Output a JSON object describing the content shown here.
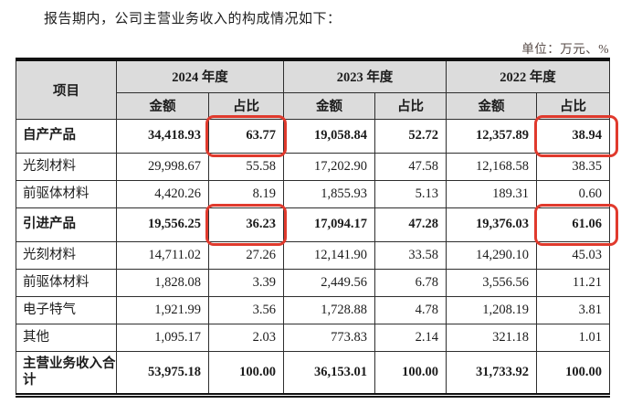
{
  "page": {
    "intro": "报告期内，公司主营业务收入的构成情况如下：",
    "unit_note": "单位：万元、%"
  },
  "colors": {
    "highlight_red": "#e03a2d",
    "header_bg": "#dcdcdc"
  },
  "table": {
    "item_header": "项目",
    "year_groups": [
      {
        "year": "2024 年度",
        "amount_label": "金额",
        "ratio_label": "占比"
      },
      {
        "year": "2023 年度",
        "amount_label": "金额",
        "ratio_label": "占比"
      },
      {
        "year": "2022 年度",
        "amount_label": "金额",
        "ratio_label": "占比"
      }
    ],
    "rows": [
      {
        "item": "自产产品",
        "style": "group",
        "values": [
          "34,418.93",
          "63.77",
          "19,058.84",
          "52.72",
          "12,357.89",
          "38.94"
        ],
        "highlights": [
          1,
          5
        ]
      },
      {
        "item": "光刻材料",
        "style": "sub",
        "values": [
          "29,998.67",
          "55.58",
          "17,202.90",
          "47.58",
          "12,168.58",
          "38.35"
        ],
        "highlights": []
      },
      {
        "item": "前驱体材料",
        "style": "sub",
        "values": [
          "4,420.26",
          "8.19",
          "1,855.93",
          "5.13",
          "189.31",
          "0.60"
        ],
        "highlights": []
      },
      {
        "item": "引进产品",
        "style": "group",
        "values": [
          "19,556.25",
          "36.23",
          "17,094.17",
          "47.28",
          "19,376.03",
          "61.06"
        ],
        "highlights": [
          1,
          5
        ]
      },
      {
        "item": "光刻材料",
        "style": "sub",
        "values": [
          "14,711.02",
          "27.26",
          "12,141.90",
          "33.58",
          "14,290.10",
          "45.03"
        ],
        "highlights": []
      },
      {
        "item": "前驱体材料",
        "style": "sub",
        "values": [
          "1,828.08",
          "3.39",
          "2,449.56",
          "6.78",
          "3,556.56",
          "11.21"
        ],
        "highlights": []
      },
      {
        "item": "电子特气",
        "style": "sub",
        "values": [
          "1,921.99",
          "3.56",
          "1,728.88",
          "4.78",
          "1,208.19",
          "3.81"
        ],
        "highlights": []
      },
      {
        "item": "其他",
        "style": "sub",
        "values": [
          "1,095.17",
          "2.03",
          "773.83",
          "2.14",
          "321.18",
          "1.01"
        ],
        "highlights": []
      },
      {
        "item": "主营业务收入合计",
        "style": "total",
        "values": [
          "53,975.18",
          "100.00",
          "36,153.01",
          "100.00",
          "31,733.92",
          "100.00"
        ],
        "highlights": []
      }
    ]
  }
}
